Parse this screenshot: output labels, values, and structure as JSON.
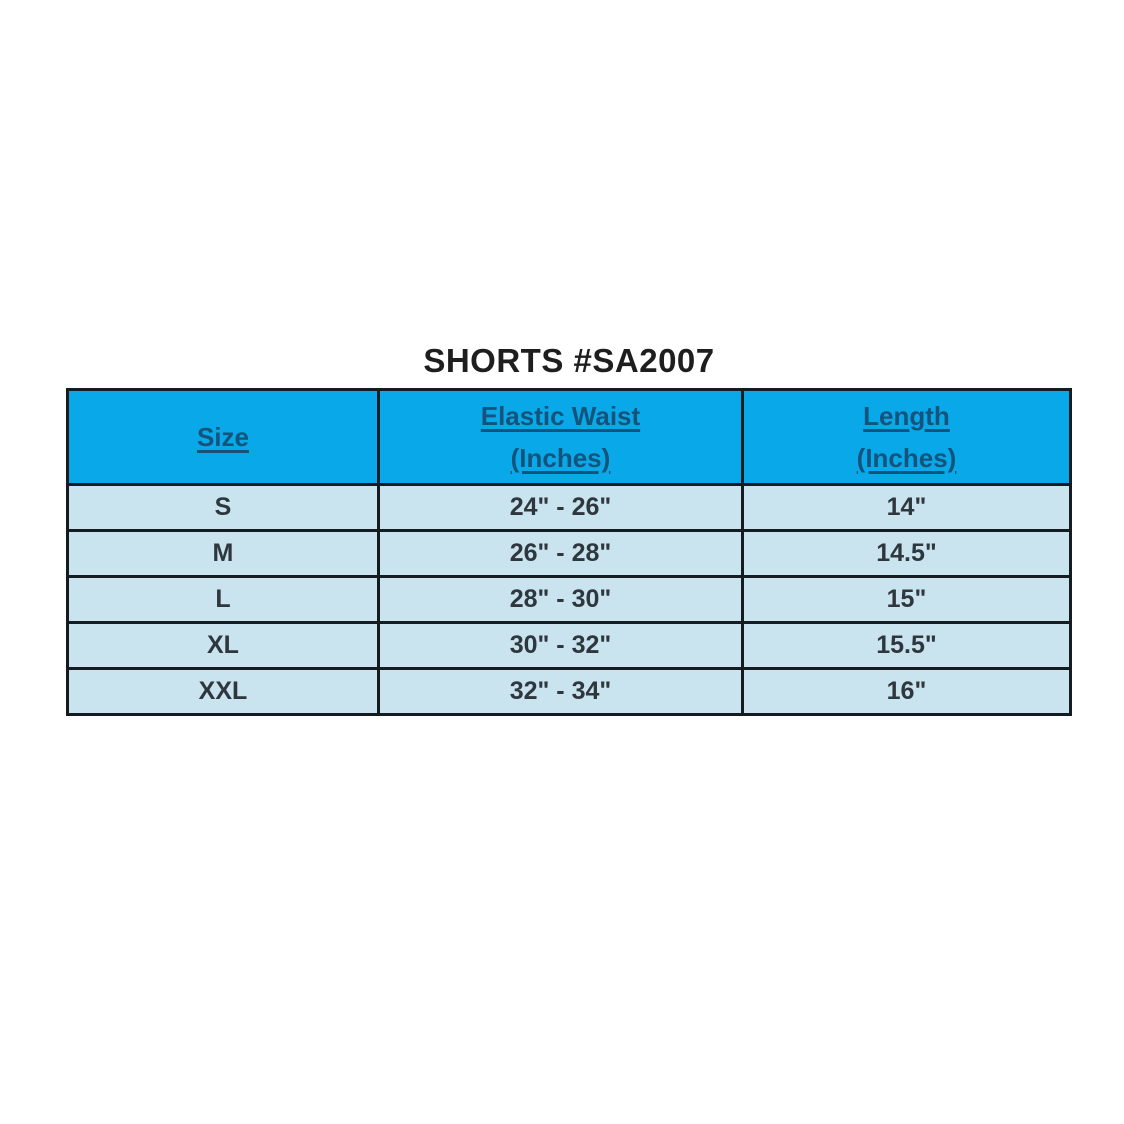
{
  "page": {
    "title": "SHORTS #SA2007"
  },
  "colors": {
    "header_background": "#09a9e9",
    "row_background": "#c9e3ef",
    "border": "#151c21",
    "header_text": "#14537c",
    "body_text": "#2e373d",
    "title_text": "#1e1e1e",
    "page_background": "#ffffff"
  },
  "table": {
    "header": {
      "size_label": "Size",
      "waist_label": "Elastic Waist",
      "waist_sublabel": "(Inches)",
      "length_label": "Length",
      "length_sublabel": "(Inches)"
    },
    "rows": [
      {
        "size": "S",
        "waist": "24\" - 26\"",
        "length": "14\""
      },
      {
        "size": "M",
        "waist": "26\" - 28\"",
        "length": "14.5\""
      },
      {
        "size": "L",
        "waist": "28\" - 30\"",
        "length": "15\""
      },
      {
        "size": "XL",
        "waist": "30\" - 32\"",
        "length": "15.5\""
      },
      {
        "size": "XXL",
        "waist": "32\" - 34\"",
        "length": "16\""
      }
    ]
  },
  "chart_data": {
    "type": "table",
    "title": "SHORTS #SA2007",
    "columns": [
      "Size",
      "Elastic Waist (Inches)",
      "Length (Inches)"
    ],
    "rows": [
      [
        "S",
        "24\" - 26\"",
        "14\""
      ],
      [
        "M",
        "26\" - 28\"",
        "14.5\""
      ],
      [
        "L",
        "28\" - 30\"",
        "15\""
      ],
      [
        "XL",
        "30\" - 32\"",
        "15.5\""
      ],
      [
        "XXL",
        "32\" - 34\"",
        "16\""
      ]
    ],
    "layout_hints": {
      "header_style": "solid azure fill, navy underlined text",
      "body_style": "light blue fill, dark charcoal text",
      "grid": "heavy dark borders on all cells"
    }
  }
}
